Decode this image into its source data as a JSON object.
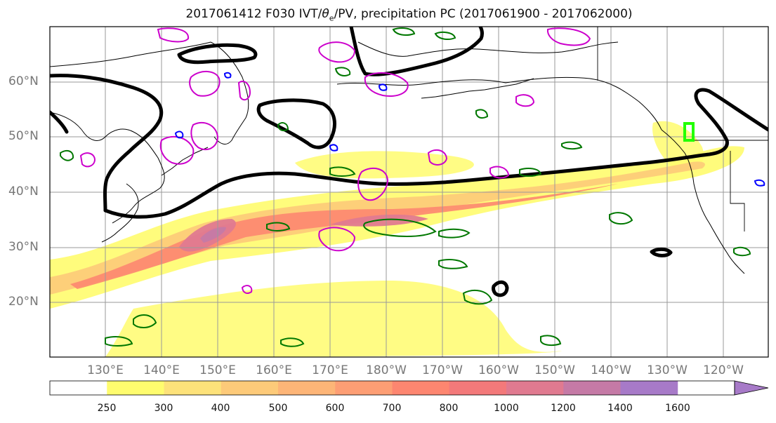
{
  "title": {
    "main": "2017061412 F030 IVT/",
    "theta": "θ",
    "theta_sub": "e",
    "rest": "/PV, precipitation PC (2017061900 - 2017062000)"
  },
  "map": {
    "lat_labels": [
      "60°N",
      "50°N",
      "40°N",
      "30°N",
      "20°N"
    ],
    "lon_labels": [
      "130°E",
      "140°E",
      "150°E",
      "160°E",
      "170°E",
      "180°W",
      "170°W",
      "160°W",
      "150°W",
      "140°W",
      "130°W",
      "120°W"
    ]
  },
  "colorbar": {
    "ticks": [
      "250",
      "300",
      "400",
      "500",
      "600",
      "700",
      "800",
      "1000",
      "1200",
      "1400",
      "1600"
    ],
    "colors": [
      "#fffc6e",
      "#fde27a",
      "#fdca79",
      "#fdb577",
      "#fd9e74",
      "#fd8670",
      "#f3797a",
      "#e07a90",
      "#c57aa6",
      "#a77ac8"
    ],
    "first_color": "#ffffff"
  },
  "contour_colors": {
    "black": "#000000",
    "magenta": "#cc00cc",
    "green": "#007700",
    "blue": "#0000ff",
    "lime": "#22ff00"
  }
}
